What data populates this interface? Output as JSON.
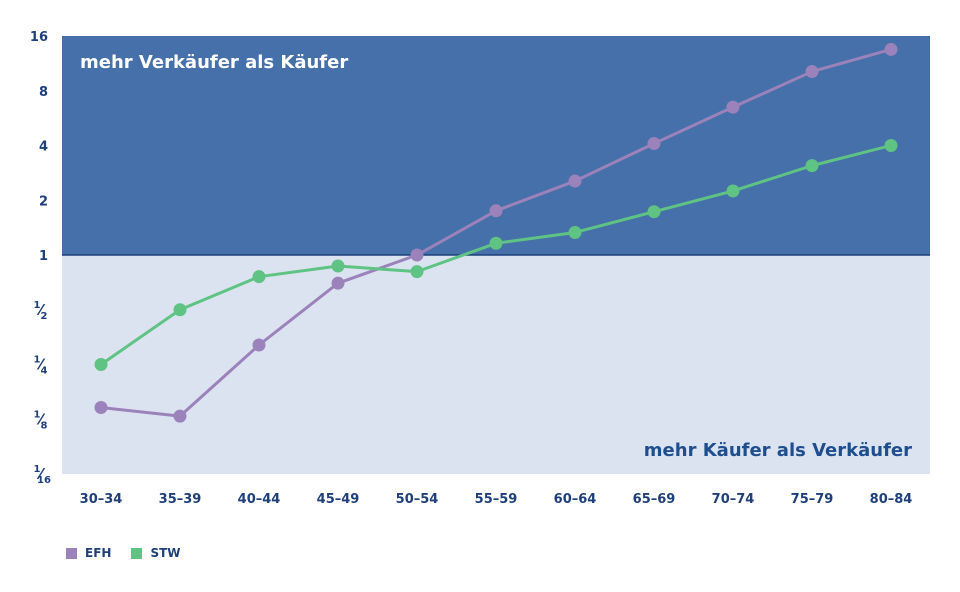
{
  "chart_data": {
    "type": "line",
    "scale_y": "log2",
    "categories": [
      "30–34",
      "35–39",
      "40–44",
      "45–49",
      "50–54",
      "55–59",
      "60–64",
      "65–69",
      "70–74",
      "75–79",
      "80–84"
    ],
    "series": [
      {
        "name": "EFH",
        "color": "#9b82ba",
        "values": [
          0.145,
          0.13,
          0.32,
          0.7,
          1.0,
          1.75,
          2.55,
          4.1,
          6.5,
          10.2,
          13.5
        ]
      },
      {
        "name": "STW",
        "color": "#5fc383",
        "values": [
          0.25,
          0.5,
          0.76,
          0.87,
          0.81,
          1.16,
          1.33,
          1.73,
          2.25,
          3.1,
          4.0
        ]
      }
    ],
    "y_ticks": [
      {
        "value": 16,
        "label": "16"
      },
      {
        "value": 8,
        "label": "8"
      },
      {
        "value": 4,
        "label": "4"
      },
      {
        "value": 2,
        "label": "2"
      },
      {
        "value": 1,
        "label": "1"
      },
      {
        "value": 0.5,
        "label": "1/2",
        "num": "1",
        "den": "2"
      },
      {
        "value": 0.25,
        "label": "1/4",
        "num": "1",
        "den": "4"
      },
      {
        "value": 0.125,
        "label": "1/8",
        "num": "1",
        "den": "8"
      },
      {
        "value": 0.0625,
        "label": "1/16",
        "num": "1",
        "den": "16"
      }
    ],
    "ylim": [
      0.0625,
      16
    ],
    "regions": {
      "upper": {
        "label": "mehr Verkäufer als Käufer",
        "color": "#4670a9",
        "label_color": "#ffffff"
      },
      "lower": {
        "label": "mehr Käufer als Verkäufer",
        "color": "#dbe3f1",
        "label_color": "#1f4e8f"
      }
    },
    "divider_value": 1,
    "legend_position": "bottom-left",
    "grid": false
  }
}
